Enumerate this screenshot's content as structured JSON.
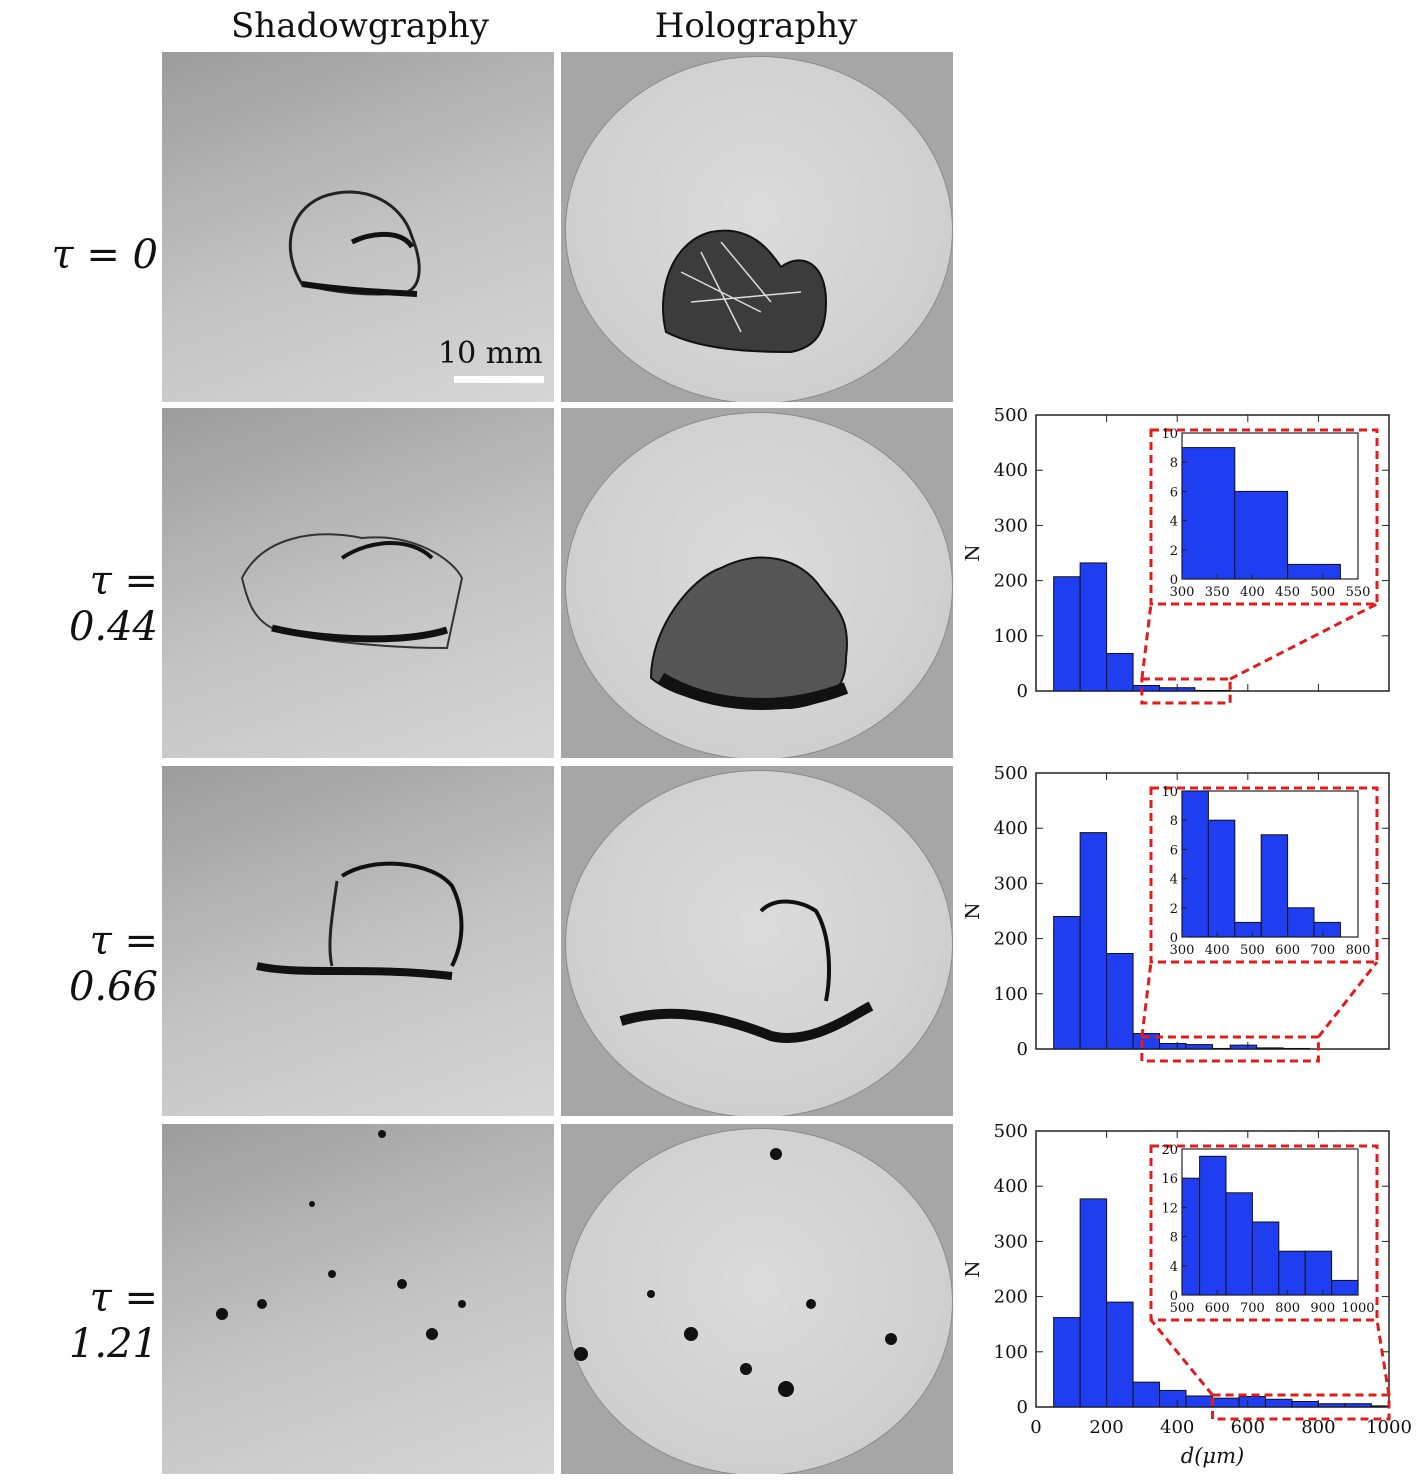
{
  "columns": {
    "shadow": "Shadowgraphy",
    "holo": "Holography"
  },
  "rows": [
    {
      "label": "τ = 0",
      "tau": "0"
    },
    {
      "label": "τ = 0.44",
      "tau": "0.44"
    },
    {
      "label": "τ = 0.66",
      "tau": "0.66"
    },
    {
      "label": "τ = 1.21",
      "tau": "1.21"
    }
  ],
  "scale_bar": {
    "label": "10 mm"
  },
  "chart_data": [
    {
      "type": "bar",
      "tau": "0.44",
      "xlabel": "",
      "ylabel": "N",
      "xlim": [
        0,
        1000
      ],
      "ylim": [
        0,
        500
      ],
      "yticks": [
        0,
        100,
        200,
        300,
        400,
        500
      ],
      "bins": [
        [
          50,
          125,
          207
        ],
        [
          125,
          200,
          232
        ],
        [
          200,
          275,
          68
        ],
        [
          275,
          350,
          10
        ],
        [
          350,
          450,
          6
        ],
        [
          450,
          550,
          1
        ]
      ],
      "zoom_range": [
        300,
        550
      ],
      "inset": {
        "xlim": [
          300,
          550
        ],
        "ylim": [
          0,
          10
        ],
        "xticks": [
          300,
          350,
          400,
          450,
          500,
          550
        ],
        "yticks": [
          0,
          2,
          4,
          6,
          8,
          10
        ],
        "bins": [
          [
            300,
            375,
            9
          ],
          [
            375,
            450,
            6
          ],
          [
            450,
            525,
            1
          ]
        ]
      }
    },
    {
      "type": "bar",
      "tau": "0.66",
      "xlabel": "",
      "ylabel": "N",
      "xlim": [
        0,
        1000
      ],
      "ylim": [
        0,
        500
      ],
      "yticks": [
        0,
        100,
        200,
        300,
        400,
        500
      ],
      "bins": [
        [
          50,
          125,
          240
        ],
        [
          125,
          200,
          392
        ],
        [
          200,
          275,
          173
        ],
        [
          275,
          350,
          28
        ],
        [
          350,
          425,
          10
        ],
        [
          425,
          500,
          8
        ],
        [
          500,
          550,
          1
        ],
        [
          550,
          625,
          7
        ],
        [
          625,
          700,
          2
        ],
        [
          700,
          775,
          1
        ]
      ],
      "zoom_range": [
        300,
        800
      ],
      "inset": {
        "xlim": [
          300,
          800
        ],
        "ylim": [
          0,
          10
        ],
        "xticks": [
          300,
          400,
          500,
          600,
          700,
          800
        ],
        "yticks": [
          0,
          2,
          4,
          6,
          8,
          10
        ],
        "bins": [
          [
            300,
            375,
            10
          ],
          [
            375,
            450,
            8
          ],
          [
            450,
            525,
            1
          ],
          [
            525,
            600,
            7
          ],
          [
            600,
            675,
            2
          ],
          [
            675,
            750,
            1
          ]
        ]
      }
    },
    {
      "type": "bar",
      "tau": "1.21",
      "xlabel": "d(μm)",
      "ylabel": "N",
      "xlim": [
        0,
        1000
      ],
      "ylim": [
        0,
        500
      ],
      "yticks": [
        0,
        100,
        200,
        300,
        400,
        500
      ],
      "xticks": [
        0,
        200,
        400,
        600,
        800,
        1000
      ],
      "bins": [
        [
          50,
          125,
          162
        ],
        [
          125,
          200,
          377
        ],
        [
          200,
          275,
          190
        ],
        [
          275,
          350,
          45
        ],
        [
          350,
          425,
          30
        ],
        [
          425,
          500,
          20
        ],
        [
          500,
          575,
          16
        ],
        [
          575,
          650,
          19
        ],
        [
          650,
          725,
          14
        ],
        [
          725,
          800,
          10
        ],
        [
          800,
          875,
          6
        ],
        [
          875,
          950,
          6
        ],
        [
          950,
          1000,
          2
        ]
      ],
      "zoom_range": [
        500,
        1000
      ],
      "inset": {
        "xlim": [
          500,
          1000
        ],
        "ylim": [
          0,
          20
        ],
        "xticks": [
          500,
          600,
          700,
          800,
          900,
          1000
        ],
        "yticks": [
          0,
          4,
          8,
          12,
          16,
          20
        ],
        "bins": [
          [
            500,
            550,
            16
          ],
          [
            550,
            625,
            19
          ],
          [
            625,
            700,
            14
          ],
          [
            700,
            775,
            10
          ],
          [
            775,
            850,
            6
          ],
          [
            850,
            925,
            6
          ],
          [
            925,
            1000,
            2
          ]
        ]
      }
    }
  ]
}
